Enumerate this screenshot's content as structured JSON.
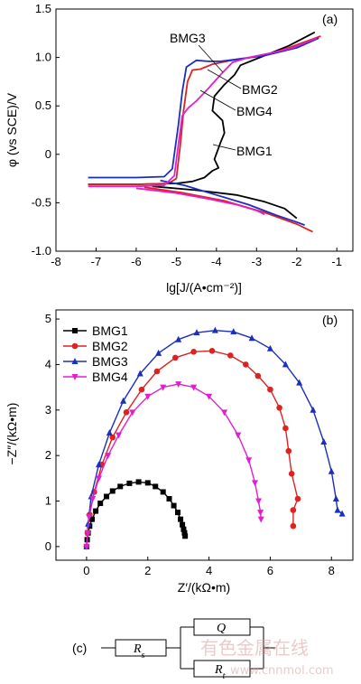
{
  "chart_data": [
    {
      "type": "line",
      "panel_label": "(a)",
      "xlabel": "lg[J/(A•cm⁻²)]",
      "ylabel": "φ (vs SCE)/V",
      "xlim": [
        -8,
        -0.6
      ],
      "ylim": [
        -1.0,
        1.5
      ],
      "xticks": [
        "-8",
        "-7",
        "-6",
        "-5",
        "-4",
        "-3",
        "-2",
        "-1"
      ],
      "yticks": [
        "-1.0",
        "-0.5",
        "0",
        "0.5",
        "1.0",
        "1.5"
      ],
      "xtick_values": [
        -8,
        -7,
        -6,
        -5,
        -4,
        -3,
        -2,
        -1
      ],
      "ytick_values": [
        -1.0,
        -0.5,
        0,
        0.5,
        1.0,
        1.5
      ],
      "annotations": [
        {
          "text": "BMG3",
          "series": "BMG3"
        },
        {
          "text": "BMG2",
          "series": "BMG2"
        },
        {
          "text": "BMG4",
          "series": "BMG4"
        },
        {
          "text": "BMG1",
          "series": "BMG1"
        }
      ],
      "series": [
        {
          "name": "BMG1",
          "color": "#000000",
          "points": [
            [
              -7.2,
              -0.31
            ],
            [
              -6,
              -0.31
            ],
            [
              -5,
              -0.3
            ],
            [
              -4.6,
              -0.28
            ],
            [
              -4.3,
              -0.24
            ],
            [
              -4.1,
              -0.17
            ],
            [
              -3.95,
              -0.14
            ],
            [
              -4.05,
              -0.05
            ],
            [
              -3.9,
              0.12
            ],
            [
              -3.8,
              0.22
            ],
            [
              -3.85,
              0.35
            ],
            [
              -4.1,
              0.45
            ],
            [
              -4.05,
              0.6
            ],
            [
              -3.8,
              0.72
            ],
            [
              -3.55,
              0.82
            ],
            [
              -3.4,
              0.92
            ],
            [
              -2.8,
              1.02
            ],
            [
              -2.2,
              1.12
            ],
            [
              -1.55,
              1.26
            ]
          ]
        },
        {
          "name": "BMG1",
          "color": "#000000",
          "points": [
            [
              -5.6,
              -0.33
            ],
            [
              -4.5,
              -0.37
            ],
            [
              -3.5,
              -0.42
            ],
            [
              -2.8,
              -0.49
            ],
            [
              -2.3,
              -0.56
            ],
            [
              -2.0,
              -0.66
            ]
          ]
        },
        {
          "name": "BMG2",
          "color": "#dd2222",
          "points": [
            [
              -7.2,
              -0.31
            ],
            [
              -6,
              -0.31
            ],
            [
              -5.2,
              -0.3
            ],
            [
              -5.0,
              -0.25
            ],
            [
              -4.9,
              0.1
            ],
            [
              -4.82,
              0.45
            ],
            [
              -4.72,
              0.75
            ],
            [
              -4.6,
              0.87
            ],
            [
              -4.4,
              0.88
            ],
            [
              -4.1,
              0.93
            ],
            [
              -3.5,
              0.98
            ],
            [
              -2.8,
              1.02
            ],
            [
              -2.2,
              1.1
            ],
            [
              -1.4,
              1.22
            ]
          ]
        },
        {
          "name": "BMG2",
          "color": "#dd2222",
          "points": [
            [
              -5.8,
              -0.34
            ],
            [
              -4.8,
              -0.4
            ],
            [
              -3.8,
              -0.48
            ],
            [
              -2.8,
              -0.6
            ],
            [
              -2.0,
              -0.72
            ],
            [
              -1.6,
              -0.8
            ]
          ]
        },
        {
          "name": "BMG3",
          "color": "#1a2fbf",
          "points": [
            [
              -7.2,
              -0.24
            ],
            [
              -6,
              -0.24
            ],
            [
              -5.3,
              -0.23
            ],
            [
              -5.1,
              -0.15
            ],
            [
              -4.95,
              0.3
            ],
            [
              -4.85,
              0.65
            ],
            [
              -4.75,
              0.9
            ],
            [
              -4.5,
              0.97
            ],
            [
              -4.2,
              0.96
            ],
            [
              -3.9,
              0.96
            ],
            [
              -3.5,
              0.98
            ],
            [
              -2.8,
              1.02
            ],
            [
              -2.0,
              1.1
            ],
            [
              -1.45,
              1.2
            ]
          ]
        },
        {
          "name": "BMG3",
          "color": "#1a2fbf",
          "points": [
            [
              -5.4,
              -0.27
            ],
            [
              -4.8,
              -0.32
            ],
            [
              -4.0,
              -0.42
            ],
            [
              -3.2,
              -0.52
            ],
            [
              -2.5,
              -0.63
            ],
            [
              -2.0,
              -0.7
            ],
            [
              -1.8,
              -0.73
            ]
          ]
        },
        {
          "name": "BMG4",
          "color": "#e020d0",
          "points": [
            [
              -7.2,
              -0.33
            ],
            [
              -6,
              -0.33
            ],
            [
              -5.3,
              -0.32
            ],
            [
              -5.05,
              -0.22
            ],
            [
              -4.95,
              0.1
            ],
            [
              -4.85,
              0.4
            ],
            [
              -4.7,
              0.48
            ],
            [
              -4.5,
              0.55
            ],
            [
              -4.2,
              0.68
            ],
            [
              -3.9,
              0.82
            ],
            [
              -3.6,
              0.95
            ],
            [
              -3.2,
              1.0
            ],
            [
              -2.6,
              1.05
            ],
            [
              -2.1,
              1.1
            ],
            [
              -1.5,
              1.2
            ]
          ]
        },
        {
          "name": "BMG4",
          "color": "#e020d0",
          "points": [
            [
              -6.0,
              -0.35
            ],
            [
              -5.0,
              -0.4
            ],
            [
              -4.2,
              -0.46
            ],
            [
              -3.5,
              -0.52
            ],
            [
              -3.0,
              -0.58
            ],
            [
              -2.8,
              -0.62
            ]
          ]
        }
      ]
    },
    {
      "type": "scatter",
      "panel_label": "(b)",
      "xlabel": "Z′/(kΩ•m)",
      "ylabel": "−Z″/(kΩ•m)",
      "xlim": [
        -1,
        8.7
      ],
      "ylim": [
        -0.3,
        5.2
      ],
      "xticks": [
        "0",
        "2",
        "4",
        "6",
        "8"
      ],
      "yticks": [
        "0",
        "1",
        "2",
        "3",
        "4",
        "5"
      ],
      "xtick_values": [
        0,
        2,
        4,
        6,
        8
      ],
      "ytick_values": [
        0,
        1,
        2,
        3,
        4,
        5
      ],
      "legend_position": "top-left",
      "series": [
        {
          "name": "BMG1",
          "color": "#000000",
          "marker": "square",
          "points": [
            [
              0.0,
              0.0
            ],
            [
              0.02,
              0.15
            ],
            [
              0.05,
              0.3
            ],
            [
              0.1,
              0.45
            ],
            [
              0.18,
              0.6
            ],
            [
              0.3,
              0.78
            ],
            [
              0.45,
              0.95
            ],
            [
              0.65,
              1.1
            ],
            [
              0.85,
              1.22
            ],
            [
              1.1,
              1.32
            ],
            [
              1.4,
              1.39
            ],
            [
              1.7,
              1.42
            ],
            [
              2.0,
              1.4
            ],
            [
              2.25,
              1.32
            ],
            [
              2.5,
              1.2
            ],
            [
              2.7,
              1.05
            ],
            [
              2.85,
              0.9
            ],
            [
              2.98,
              0.75
            ],
            [
              3.07,
              0.6
            ],
            [
              3.13,
              0.48
            ],
            [
              3.17,
              0.38
            ],
            [
              3.2,
              0.3
            ],
            [
              3.22,
              0.23
            ]
          ]
        },
        {
          "name": "BMG2",
          "color": "#dd2222",
          "marker": "circle",
          "points": [
            [
              0.0,
              0.0
            ],
            [
              0.03,
              0.3
            ],
            [
              0.1,
              0.7
            ],
            [
              0.25,
              1.2
            ],
            [
              0.5,
              1.8
            ],
            [
              0.85,
              2.4
            ],
            [
              1.3,
              2.95
            ],
            [
              1.8,
              3.45
            ],
            [
              2.3,
              3.85
            ],
            [
              2.9,
              4.15
            ],
            [
              3.5,
              4.28
            ],
            [
              4.1,
              4.3
            ],
            [
              4.7,
              4.2
            ],
            [
              5.2,
              4.0
            ],
            [
              5.6,
              3.75
            ],
            [
              6.0,
              3.45
            ],
            [
              6.3,
              3.05
            ],
            [
              6.5,
              2.6
            ],
            [
              6.6,
              2.1
            ],
            [
              6.7,
              1.6
            ],
            [
              6.9,
              1.05
            ],
            [
              6.75,
              0.8
            ],
            [
              6.75,
              0.45
            ]
          ]
        },
        {
          "name": "BMG3",
          "color": "#1a2fbf",
          "marker": "triangle",
          "points": [
            [
              0.0,
              0.0
            ],
            [
              0.05,
              0.5
            ],
            [
              0.15,
              1.1
            ],
            [
              0.4,
              1.8
            ],
            [
              0.75,
              2.5
            ],
            [
              1.2,
              3.2
            ],
            [
              1.75,
              3.8
            ],
            [
              2.35,
              4.25
            ],
            [
              3.0,
              4.55
            ],
            [
              3.6,
              4.7
            ],
            [
              4.2,
              4.75
            ],
            [
              4.8,
              4.72
            ],
            [
              5.4,
              4.58
            ],
            [
              6.0,
              4.35
            ],
            [
              6.5,
              4.0
            ],
            [
              6.95,
              3.6
            ],
            [
              7.4,
              3.0
            ],
            [
              7.75,
              2.3
            ],
            [
              8.0,
              1.65
            ],
            [
              8.15,
              1.05
            ],
            [
              8.2,
              0.8
            ],
            [
              8.35,
              0.72
            ]
          ]
        },
        {
          "name": "BMG4",
          "color": "#e020d0",
          "marker": "triangle-down",
          "points": [
            [
              0.0,
              0.0
            ],
            [
              0.03,
              0.3
            ],
            [
              0.08,
              0.65
            ],
            [
              0.2,
              1.05
            ],
            [
              0.4,
              1.5
            ],
            [
              0.7,
              2.0
            ],
            [
              1.05,
              2.45
            ],
            [
              1.5,
              2.95
            ],
            [
              2.0,
              3.3
            ],
            [
              2.5,
              3.5
            ],
            [
              3.0,
              3.57
            ],
            [
              3.5,
              3.5
            ],
            [
              4.0,
              3.3
            ],
            [
              4.5,
              2.95
            ],
            [
              4.95,
              2.45
            ],
            [
              5.3,
              1.9
            ],
            [
              5.5,
              1.4
            ],
            [
              5.62,
              1.0
            ],
            [
              5.68,
              0.75
            ],
            [
              5.7,
              0.6
            ]
          ]
        }
      ]
    }
  ],
  "circuit": {
    "panel_label": "(c)",
    "rs": "R",
    "rs_sub": "s",
    "q": "Q",
    "rt": "R",
    "rt_sub": "t"
  },
  "watermark": {
    "text": "有色金属在线",
    "url": "www.cnnmol.com"
  }
}
